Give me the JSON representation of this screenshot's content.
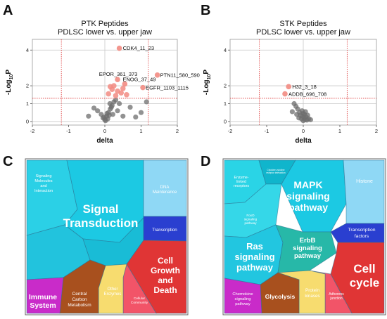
{
  "panels": {
    "A": "A",
    "B": "B",
    "C": "C",
    "D": "D"
  },
  "chart_data": [
    {
      "type": "scatter",
      "panel": "A",
      "title": "PTK Peptides",
      "subtitle": "PDLSC lower vs. upper jaw",
      "xlabel": "delta",
      "ylabel": "-Log10P",
      "xlim": [
        -2,
        2
      ],
      "ylim": [
        -0.2,
        4.6
      ],
      "xticks": [
        -2,
        -1,
        0,
        1,
        2
      ],
      "yticks": [
        0,
        1,
        2,
        4
      ],
      "threshold_x": [
        -1.2,
        1.2
      ],
      "threshold_y": 1.3,
      "colors": {
        "significant": "#f28b82",
        "nonsignificant": "#6e6e6e"
      },
      "labeled_points": [
        {
          "label": "CDK4_11_23",
          "x": 0.4,
          "y": 4.1
        },
        {
          "label": "PTN11_580_590",
          "x": 1.45,
          "y": 2.6
        },
        {
          "label": "EPOR_361_373",
          "x": 0.35,
          "y": 2.35
        },
        {
          "label": "ENOG_37_49",
          "x": 0.55,
          "y": 2.1
        },
        {
          "label": "EGFR_1103_1115",
          "x": 1.05,
          "y": 1.9
        }
      ],
      "significant_points": [
        {
          "x": 0.2,
          "y": 1.8
        },
        {
          "x": 0.35,
          "y": 1.7
        },
        {
          "x": 0.1,
          "y": 1.55
        },
        {
          "x": 0.3,
          "y": 1.45
        },
        {
          "x": 0.45,
          "y": 1.6
        },
        {
          "x": 0.6,
          "y": 1.5
        },
        {
          "x": 0.15,
          "y": 1.95
        },
        {
          "x": 0.5,
          "y": 1.85
        },
        {
          "x": 0.25,
          "y": 2.0
        }
      ],
      "nonsignificant_points": [
        {
          "x": 0.0,
          "y": 0.1
        },
        {
          "x": 0.05,
          "y": 0.3
        },
        {
          "x": -0.05,
          "y": 0.2
        },
        {
          "x": 0.1,
          "y": 0.5
        },
        {
          "x": 0.15,
          "y": 0.7
        },
        {
          "x": 0.2,
          "y": 0.9
        },
        {
          "x": 0.25,
          "y": 1.1
        },
        {
          "x": 0.08,
          "y": 0.15
        },
        {
          "x": 0.12,
          "y": 0.35
        },
        {
          "x": 0.3,
          "y": 1.2
        },
        {
          "x": -0.1,
          "y": 0.4
        },
        {
          "x": -0.45,
          "y": 0.3
        },
        {
          "x": -0.2,
          "y": 0.6
        },
        {
          "x": 0.18,
          "y": 0.8
        },
        {
          "x": 0.02,
          "y": 0.05
        },
        {
          "x": -0.02,
          "y": 0.25
        },
        {
          "x": 0.06,
          "y": 0.45
        },
        {
          "x": 0.4,
          "y": 1.0
        },
        {
          "x": 0.7,
          "y": 0.8
        },
        {
          "x": 1.15,
          "y": 1.1
        },
        {
          "x": 0.85,
          "y": 0.25
        },
        {
          "x": 1.0,
          "y": 0.5
        },
        {
          "x": 0.35,
          "y": 0.6
        },
        {
          "x": 0.22,
          "y": 0.4
        },
        {
          "x": -0.3,
          "y": 0.75
        },
        {
          "x": 0.5,
          "y": 0.3
        },
        {
          "x": 0.14,
          "y": 1.0
        }
      ]
    },
    {
      "type": "scatter",
      "panel": "B",
      "title": "STK Peptides",
      "subtitle": "PDLSC lower vs. upper jaw",
      "xlabel": "delta",
      "ylabel": "-Log10P",
      "xlim": [
        -2,
        2
      ],
      "ylim": [
        -0.2,
        4.6
      ],
      "xticks": [
        -2,
        -1,
        0,
        1,
        2
      ],
      "yticks": [
        0,
        1,
        2,
        4
      ],
      "threshold_x": [
        -1.2,
        1.2
      ],
      "threshold_y": 1.3,
      "colors": {
        "significant": "#f28b82",
        "nonsignificant": "#6e6e6e"
      },
      "labeled_points": [
        {
          "label": "H32_3_18",
          "x": -0.4,
          "y": 1.95
        },
        {
          "label": "ADDB_696_708",
          "x": -0.5,
          "y": 1.55
        }
      ],
      "significant_points": [],
      "nonsignificant_points": [
        {
          "x": 0.0,
          "y": 0.05
        },
        {
          "x": 0.02,
          "y": 0.2
        },
        {
          "x": -0.02,
          "y": 0.3
        },
        {
          "x": 0.05,
          "y": 0.1
        },
        {
          "x": -0.05,
          "y": 0.15
        },
        {
          "x": 0.0,
          "y": 0.45
        },
        {
          "x": 0.08,
          "y": 0.25
        },
        {
          "x": -0.08,
          "y": 0.35
        },
        {
          "x": 0.1,
          "y": 0.08
        },
        {
          "x": -0.1,
          "y": 0.5
        },
        {
          "x": -0.15,
          "y": 0.7
        },
        {
          "x": -0.2,
          "y": 0.85
        },
        {
          "x": -0.25,
          "y": 1.0
        },
        {
          "x": 0.15,
          "y": 0.15
        },
        {
          "x": -0.03,
          "y": 0.6
        },
        {
          "x": 0.03,
          "y": 0.4
        },
        {
          "x": -0.12,
          "y": 0.2
        },
        {
          "x": 0.12,
          "y": 0.35
        },
        {
          "x": -0.3,
          "y": 0.55
        },
        {
          "x": 0.2,
          "y": 0.1
        },
        {
          "x": -0.18,
          "y": 0.4
        },
        {
          "x": 0.06,
          "y": 0.55
        }
      ]
    },
    {
      "type": "treemap",
      "panel": "C",
      "cells": [
        {
          "label": "Signal Transduction",
          "color": "#1cc9e3"
        },
        {
          "label": "Signaling Molecules and Interaction",
          "color": "#2bd0e6"
        },
        {
          "label": "DNA Maintenance",
          "color": "#8fd8f5"
        },
        {
          "label": "Transcription",
          "color": "#2a3fd0"
        },
        {
          "label": "Cell Growth and Death",
          "color": "#e03535"
        },
        {
          "label": "Cellular Community",
          "color": "#f25468"
        },
        {
          "label": "Other Enzymes",
          "color": "#f7dc6f"
        },
        {
          "label": "Central Carbon Metabolism",
          "color": "#a8501e"
        },
        {
          "label": "Immune System",
          "color": "#c92bc9"
        }
      ]
    },
    {
      "type": "treemap",
      "panel": "D",
      "cells": [
        {
          "label": "MAPK signaling pathway",
          "color": "#1cc9e3"
        },
        {
          "label": "Ras signaling pathway",
          "color": "#1cc9e3"
        },
        {
          "label": "ErbB signaling pathway",
          "color": "#27b8a8"
        },
        {
          "label": "Enzyme-linked receptors",
          "color": "#2ad4e6"
        },
        {
          "label": "Cytokine-cytokine receptor interaction",
          "color": "#10b5cc"
        },
        {
          "label": "FoxO signaling pathway",
          "color": "#35d7e8"
        },
        {
          "label": "Histone",
          "color": "#8fd8f5"
        },
        {
          "label": "Transcription factors",
          "color": "#2a3fd0"
        },
        {
          "label": "Cell cycle",
          "color": "#e03535"
        },
        {
          "label": "Adherens junction",
          "color": "#f25468"
        },
        {
          "label": "Protein kinases",
          "color": "#f7dc6f"
        },
        {
          "label": "Glycolysis",
          "color": "#a8501e"
        },
        {
          "label": "Chemokine signaling pathway",
          "color": "#c92bc9"
        }
      ]
    }
  ]
}
